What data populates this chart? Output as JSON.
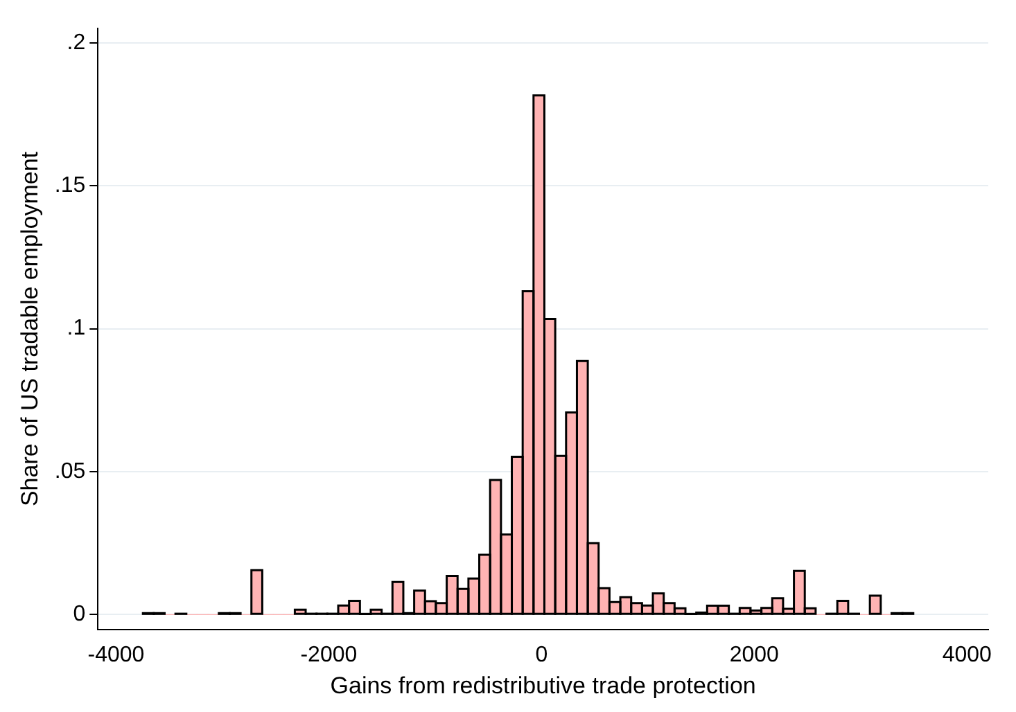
{
  "chart_data": {
    "type": "histogram",
    "xlabel": "Gains from redistributive trade protection",
    "ylabel": "Share of US tradable employment",
    "bins": [
      -3747,
      -3645,
      -3543,
      -3441,
      -3339,
      -3237,
      -3135,
      -3033,
      -2931,
      -2829,
      -2727,
      -2625,
      -2523,
      -2421,
      -2319,
      -2217,
      -2115,
      -2013,
      -1911,
      -1809,
      -1707,
      -1605,
      -1503,
      -1401,
      -1299,
      -1197,
      -1095,
      -993,
      -891,
      -789,
      -687,
      -585,
      -483,
      -381,
      -279,
      -177,
      -75,
      27,
      129,
      231,
      333,
      435,
      537,
      639,
      741,
      843,
      945,
      1047,
      1149,
      1251,
      1353,
      1455,
      1557,
      1659,
      1761,
      1863,
      1965,
      2067,
      2169,
      2271,
      2373,
      2475,
      2577,
      2679,
      2781,
      2883,
      2985,
      3087,
      3189,
      3291,
      3393,
      3495
    ],
    "values": [
      0.0005,
      0.0005,
      0,
      0.0003,
      0,
      0,
      0,
      0.0005,
      0.0005,
      0,
      0.0155,
      0,
      0,
      0,
      0.0017,
      0.0003,
      0.0003,
      0.0003,
      0.0032,
      0.0048,
      0.0002,
      0.0017,
      0.0003,
      0.0114,
      0.0005,
      0.0084,
      0.0047,
      0.004,
      0.0135,
      0.009,
      0.0126,
      0.0209,
      0.0471,
      0.028,
      0.0552,
      0.1131,
      0.1816,
      0.1034,
      0.0555,
      0.0707,
      0.0887,
      0.025,
      0.0092,
      0.0044,
      0.0061,
      0.004,
      0.0032,
      0.0074,
      0.004,
      0.0022,
      0.0002,
      0.0007,
      0.0031,
      0.0031,
      0.0003,
      0.0023,
      0.0014,
      0.0023,
      0.0057,
      0.002,
      0.0153,
      0.0022,
      0,
      0.0003,
      0.0048,
      0.0003,
      0,
      0.0066,
      0,
      0.0005,
      0.0005
    ],
    "color": "#ffb3b3",
    "xlim": [
      -4170,
      4200
    ],
    "xticks": [
      -4000,
      -2000,
      0,
      2000,
      4000
    ],
    "ylim": [
      -0.0052,
      0.205
    ],
    "yticks": [
      0,
      {
        "value": 0.05,
        "label": ".05"
      },
      {
        "value": 0.1,
        "label": ".1"
      },
      {
        "value": 0.15,
        "label": ".15"
      },
      {
        "value": 0.2,
        "label": ".2"
      }
    ],
    "grid": "y",
    "legend": false
  }
}
